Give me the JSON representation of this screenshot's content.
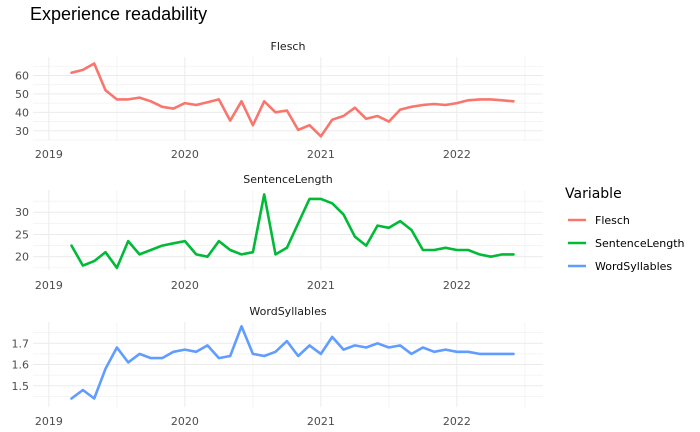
{
  "chart_title": "Experience readability",
  "chart_data": {
    "type": "line",
    "title": "Experience readability",
    "x_tick_labels": [
      "2019",
      "2020",
      "2021",
      "2022"
    ],
    "legend": {
      "title": "Variable",
      "position": "right"
    },
    "grid": true,
    "x": [
      "2019-03",
      "2019-04",
      "2019-05",
      "2019-06",
      "2019-07",
      "2019-08",
      "2019-09",
      "2019-10",
      "2019-11",
      "2019-12",
      "2020-01",
      "2020-02",
      "2020-03",
      "2020-04",
      "2020-05",
      "2020-06",
      "2020-07",
      "2020-08",
      "2020-09",
      "2020-10",
      "2020-11",
      "2020-12",
      "2021-01",
      "2021-02",
      "2021-03",
      "2021-04",
      "2021-05",
      "2021-06",
      "2021-07",
      "2021-08",
      "2021-09",
      "2021-10",
      "2021-11",
      "2021-12",
      "2022-01",
      "2022-02",
      "2022-03",
      "2022-04",
      "2022-05",
      "2022-06"
    ],
    "panels": [
      {
        "name": "Flesch",
        "color": "#F8766D",
        "ylim": [
          25,
          70
        ],
        "yticks": [
          30,
          40,
          50,
          60
        ],
        "values": [
          61.5,
          63,
          66.5,
          52,
          47,
          47,
          48,
          46,
          43,
          42,
          45,
          44,
          45.5,
          47,
          35.5,
          46,
          33,
          46,
          40,
          41,
          30.5,
          33,
          27,
          36,
          38,
          42.5,
          36.5,
          38,
          35,
          41.5,
          43,
          44,
          44.5,
          44,
          45,
          46.5,
          47,
          47,
          46.5,
          46
        ]
      },
      {
        "name": "SentenceLength",
        "color": "#00BA38",
        "ylim": [
          17,
          35
        ],
        "yticks": [
          20,
          25,
          30
        ],
        "values": [
          22.5,
          18,
          19,
          21,
          17.5,
          23.5,
          20.5,
          21.5,
          22.5,
          23,
          23.5,
          20.5,
          20,
          23.5,
          21.5,
          20.5,
          21,
          34,
          20.5,
          22,
          27.5,
          33,
          33,
          32,
          29.5,
          24.5,
          22.5,
          27,
          26.5,
          28,
          26,
          21.5,
          21.5,
          22,
          21.5,
          21.5,
          20.5,
          20,
          20.5,
          20.5
        ]
      },
      {
        "name": "WordSyllables",
        "color": "#619CFF",
        "ylim": [
          1.4,
          1.8
        ],
        "yticks": [
          1.5,
          1.6,
          1.7
        ],
        "ytick_labels": [
          "1.5",
          "1.6",
          "1.7"
        ],
        "values": [
          1.44,
          1.48,
          1.44,
          1.58,
          1.68,
          1.61,
          1.65,
          1.63,
          1.63,
          1.66,
          1.67,
          1.66,
          1.69,
          1.63,
          1.64,
          1.78,
          1.65,
          1.64,
          1.66,
          1.71,
          1.64,
          1.69,
          1.65,
          1.73,
          1.67,
          1.69,
          1.68,
          1.7,
          1.68,
          1.69,
          1.65,
          1.68,
          1.66,
          1.67,
          1.66,
          1.66,
          1.65,
          1.65,
          1.65,
          1.65
        ]
      }
    ]
  }
}
